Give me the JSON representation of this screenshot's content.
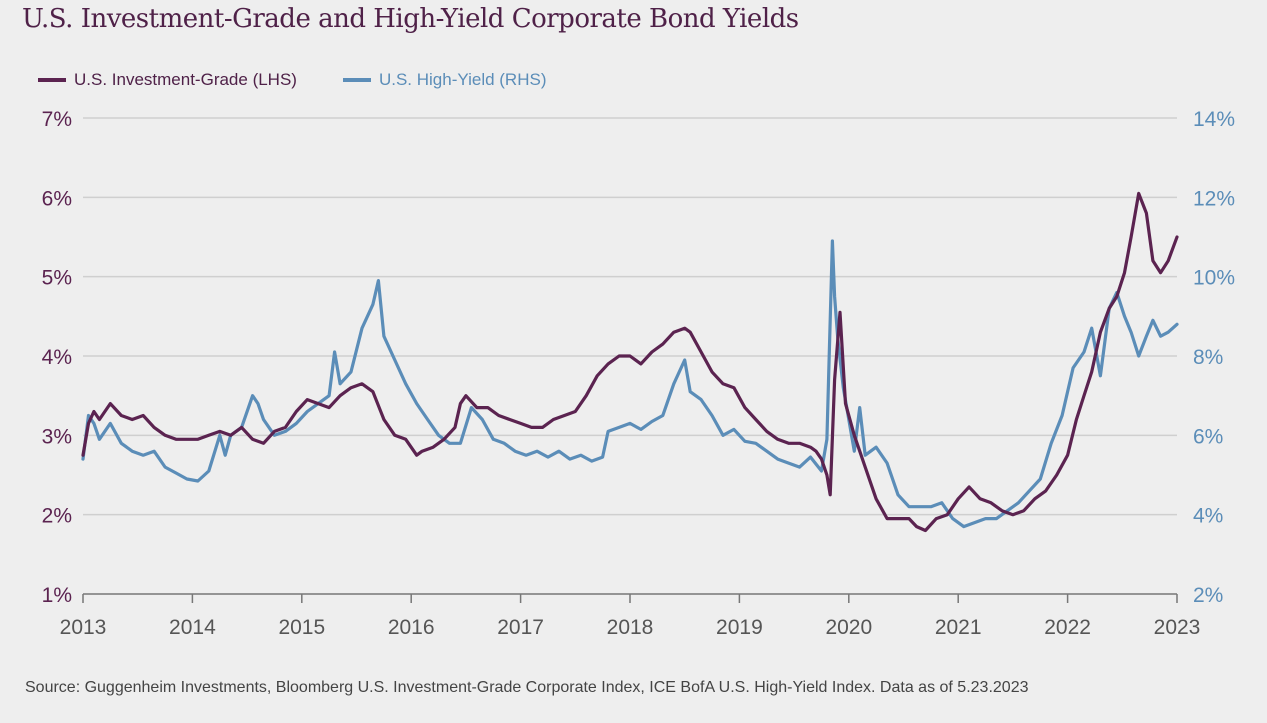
{
  "chart_data": {
    "type": "line",
    "title": "U.S. Investment-Grade and High-Yield Corporate Bond Yields",
    "source": "Source: Guggenheim Investments, Bloomberg U.S. Investment-Grade Corporate Index, ICE BofA U.S. High-Yield Index. Data as of 5.23.2023",
    "xlabel": "",
    "x_ticks": [
      "2013",
      "2014",
      "2015",
      "2016",
      "2017",
      "2018",
      "2019",
      "2020",
      "2021",
      "2022",
      "2023"
    ],
    "xlim": [
      2013,
      2023
    ],
    "y_left": {
      "label": "",
      "ticks": [
        "1%",
        "2%",
        "3%",
        "4%",
        "5%",
        "6%",
        "7%"
      ],
      "ylim": [
        1,
        7
      ]
    },
    "y_right": {
      "label": "",
      "ticks": [
        "2%",
        "4%",
        "6%",
        "8%",
        "10%",
        "12%",
        "14%"
      ],
      "ylim": [
        2,
        14
      ]
    },
    "grid": true,
    "legend_position": "top-left",
    "colors": {
      "ig": "#5b2350",
      "hy": "#5b8db8",
      "left_axis_text": "#5b2350",
      "right_axis_text": "#5b8db8",
      "title": "#4f2148",
      "grid": "#cfcfcf"
    },
    "series": [
      {
        "name": "U.S. Investment-Grade (LHS)",
        "axis": "left",
        "x": [
          2013.0,
          2013.05,
          2013.1,
          2013.15,
          2013.25,
          2013.35,
          2013.45,
          2013.55,
          2013.65,
          2013.75,
          2013.85,
          2013.95,
          2014.05,
          2014.15,
          2014.25,
          2014.35,
          2014.45,
          2014.55,
          2014.65,
          2014.75,
          2014.85,
          2014.95,
          2015.05,
          2015.15,
          2015.25,
          2015.35,
          2015.45,
          2015.55,
          2015.65,
          2015.75,
          2015.85,
          2015.95,
          2016.05,
          2016.1,
          2016.2,
          2016.3,
          2016.4,
          2016.45,
          2016.5,
          2016.6,
          2016.7,
          2016.8,
          2016.9,
          2017.0,
          2017.1,
          2017.2,
          2017.3,
          2017.4,
          2017.5,
          2017.6,
          2017.7,
          2017.8,
          2017.9,
          2018.0,
          2018.1,
          2018.2,
          2018.3,
          2018.4,
          2018.5,
          2018.55,
          2018.65,
          2018.75,
          2018.85,
          2018.95,
          2019.05,
          2019.15,
          2019.25,
          2019.35,
          2019.45,
          2019.55,
          2019.65,
          2019.7,
          2019.75,
          2019.8,
          2019.83,
          2019.87,
          2019.92,
          2019.97,
          2020.05,
          2020.15,
          2020.25,
          2020.35,
          2020.45,
          2020.55,
          2020.62,
          2020.7,
          2020.8,
          2020.9,
          2021.0,
          2021.1,
          2021.2,
          2021.3,
          2021.4,
          2021.5,
          2021.6,
          2021.7,
          2021.8,
          2021.9,
          2022.0,
          2022.08,
          2022.15,
          2022.22,
          2022.3,
          2022.38,
          2022.45,
          2022.52,
          2022.58,
          2022.65,
          2022.72,
          2022.78,
          2022.85,
          2022.92,
          2023.0
        ],
        "values": [
          2.75,
          3.15,
          3.3,
          3.2,
          3.4,
          3.25,
          3.2,
          3.25,
          3.1,
          3.0,
          2.95,
          2.95,
          2.95,
          3.0,
          3.05,
          3.0,
          3.1,
          2.95,
          2.9,
          3.05,
          3.1,
          3.3,
          3.45,
          3.4,
          3.35,
          3.5,
          3.6,
          3.65,
          3.55,
          3.2,
          3.0,
          2.95,
          2.75,
          2.8,
          2.85,
          2.95,
          3.1,
          3.4,
          3.5,
          3.35,
          3.35,
          3.25,
          3.2,
          3.15,
          3.1,
          3.1,
          3.2,
          3.25,
          3.3,
          3.5,
          3.75,
          3.9,
          4.0,
          4.0,
          3.9,
          4.05,
          4.15,
          4.3,
          4.35,
          4.3,
          4.05,
          3.8,
          3.65,
          3.6,
          3.35,
          3.2,
          3.05,
          2.95,
          2.9,
          2.9,
          2.85,
          2.8,
          2.7,
          2.5,
          2.25,
          3.7,
          4.55,
          3.4,
          3.0,
          2.6,
          2.2,
          1.95,
          1.95,
          1.95,
          1.85,
          1.8,
          1.95,
          2.0,
          2.2,
          2.35,
          2.2,
          2.15,
          2.05,
          2.0,
          2.05,
          2.2,
          2.3,
          2.5,
          2.75,
          3.2,
          3.5,
          3.8,
          4.3,
          4.6,
          4.75,
          5.05,
          5.5,
          6.05,
          5.8,
          5.2,
          5.05,
          5.2,
          5.5
        ]
      },
      {
        "name": "U.S. High-Yield (RHS)",
        "axis": "right",
        "x": [
          2013.0,
          2013.05,
          2013.1,
          2013.15,
          2013.25,
          2013.35,
          2013.45,
          2013.55,
          2013.65,
          2013.75,
          2013.85,
          2013.95,
          2014.05,
          2014.15,
          2014.25,
          2014.3,
          2014.35,
          2014.45,
          2014.55,
          2014.6,
          2014.65,
          2014.75,
          2014.85,
          2014.95,
          2015.05,
          2015.15,
          2015.25,
          2015.3,
          2015.35,
          2015.45,
          2015.55,
          2015.65,
          2015.7,
          2015.75,
          2015.85,
          2015.95,
          2016.05,
          2016.15,
          2016.25,
          2016.35,
          2016.45,
          2016.55,
          2016.65,
          2016.75,
          2016.85,
          2016.95,
          2017.05,
          2017.15,
          2017.25,
          2017.35,
          2017.45,
          2017.55,
          2017.65,
          2017.75,
          2017.8,
          2017.9,
          2018.0,
          2018.1,
          2018.2,
          2018.3,
          2018.4,
          2018.5,
          2018.55,
          2018.65,
          2018.75,
          2018.85,
          2018.95,
          2019.05,
          2019.15,
          2019.25,
          2019.35,
          2019.45,
          2019.55,
          2019.65,
          2019.75,
          2019.8,
          2019.85,
          2019.87,
          2019.9,
          2019.95,
          2020.05,
          2020.1,
          2020.15,
          2020.25,
          2020.35,
          2020.45,
          2020.55,
          2020.65,
          2020.75,
          2020.85,
          2020.95,
          2021.05,
          2021.15,
          2021.25,
          2021.35,
          2021.45,
          2021.55,
          2021.65,
          2021.75,
          2021.85,
          2021.95,
          2022.05,
          2022.15,
          2022.22,
          2022.3,
          2022.38,
          2022.45,
          2022.52,
          2022.58,
          2022.65,
          2022.72,
          2022.78,
          2022.85,
          2022.92,
          2023.0
        ],
        "values": [
          5.4,
          6.5,
          6.3,
          5.9,
          6.3,
          5.8,
          5.6,
          5.5,
          5.6,
          5.2,
          5.05,
          4.9,
          4.85,
          5.1,
          6.0,
          5.5,
          6.0,
          6.2,
          7.0,
          6.8,
          6.4,
          6.0,
          6.1,
          6.3,
          6.6,
          6.8,
          7.0,
          8.1,
          7.3,
          7.6,
          8.7,
          9.3,
          9.9,
          8.5,
          7.9,
          7.3,
          6.8,
          6.4,
          6.0,
          5.8,
          5.8,
          6.7,
          6.4,
          5.9,
          5.8,
          5.6,
          5.5,
          5.6,
          5.45,
          5.6,
          5.4,
          5.5,
          5.35,
          5.45,
          6.1,
          6.2,
          6.3,
          6.15,
          6.35,
          6.5,
          7.3,
          7.9,
          7.1,
          6.9,
          6.5,
          6.0,
          6.15,
          5.85,
          5.8,
          5.6,
          5.4,
          5.3,
          5.2,
          5.45,
          5.1,
          5.9,
          10.9,
          9.5,
          8.4,
          7.2,
          5.6,
          6.7,
          5.5,
          5.7,
          5.3,
          4.5,
          4.2,
          4.2,
          4.2,
          4.3,
          3.9,
          3.7,
          3.8,
          3.9,
          3.9,
          4.1,
          4.3,
          4.6,
          4.9,
          5.8,
          6.5,
          7.7,
          8.1,
          8.7,
          7.5,
          9.2,
          9.6,
          9.0,
          8.6,
          8.0,
          8.5,
          8.9,
          8.5,
          8.6,
          8.8
        ]
      }
    ]
  }
}
